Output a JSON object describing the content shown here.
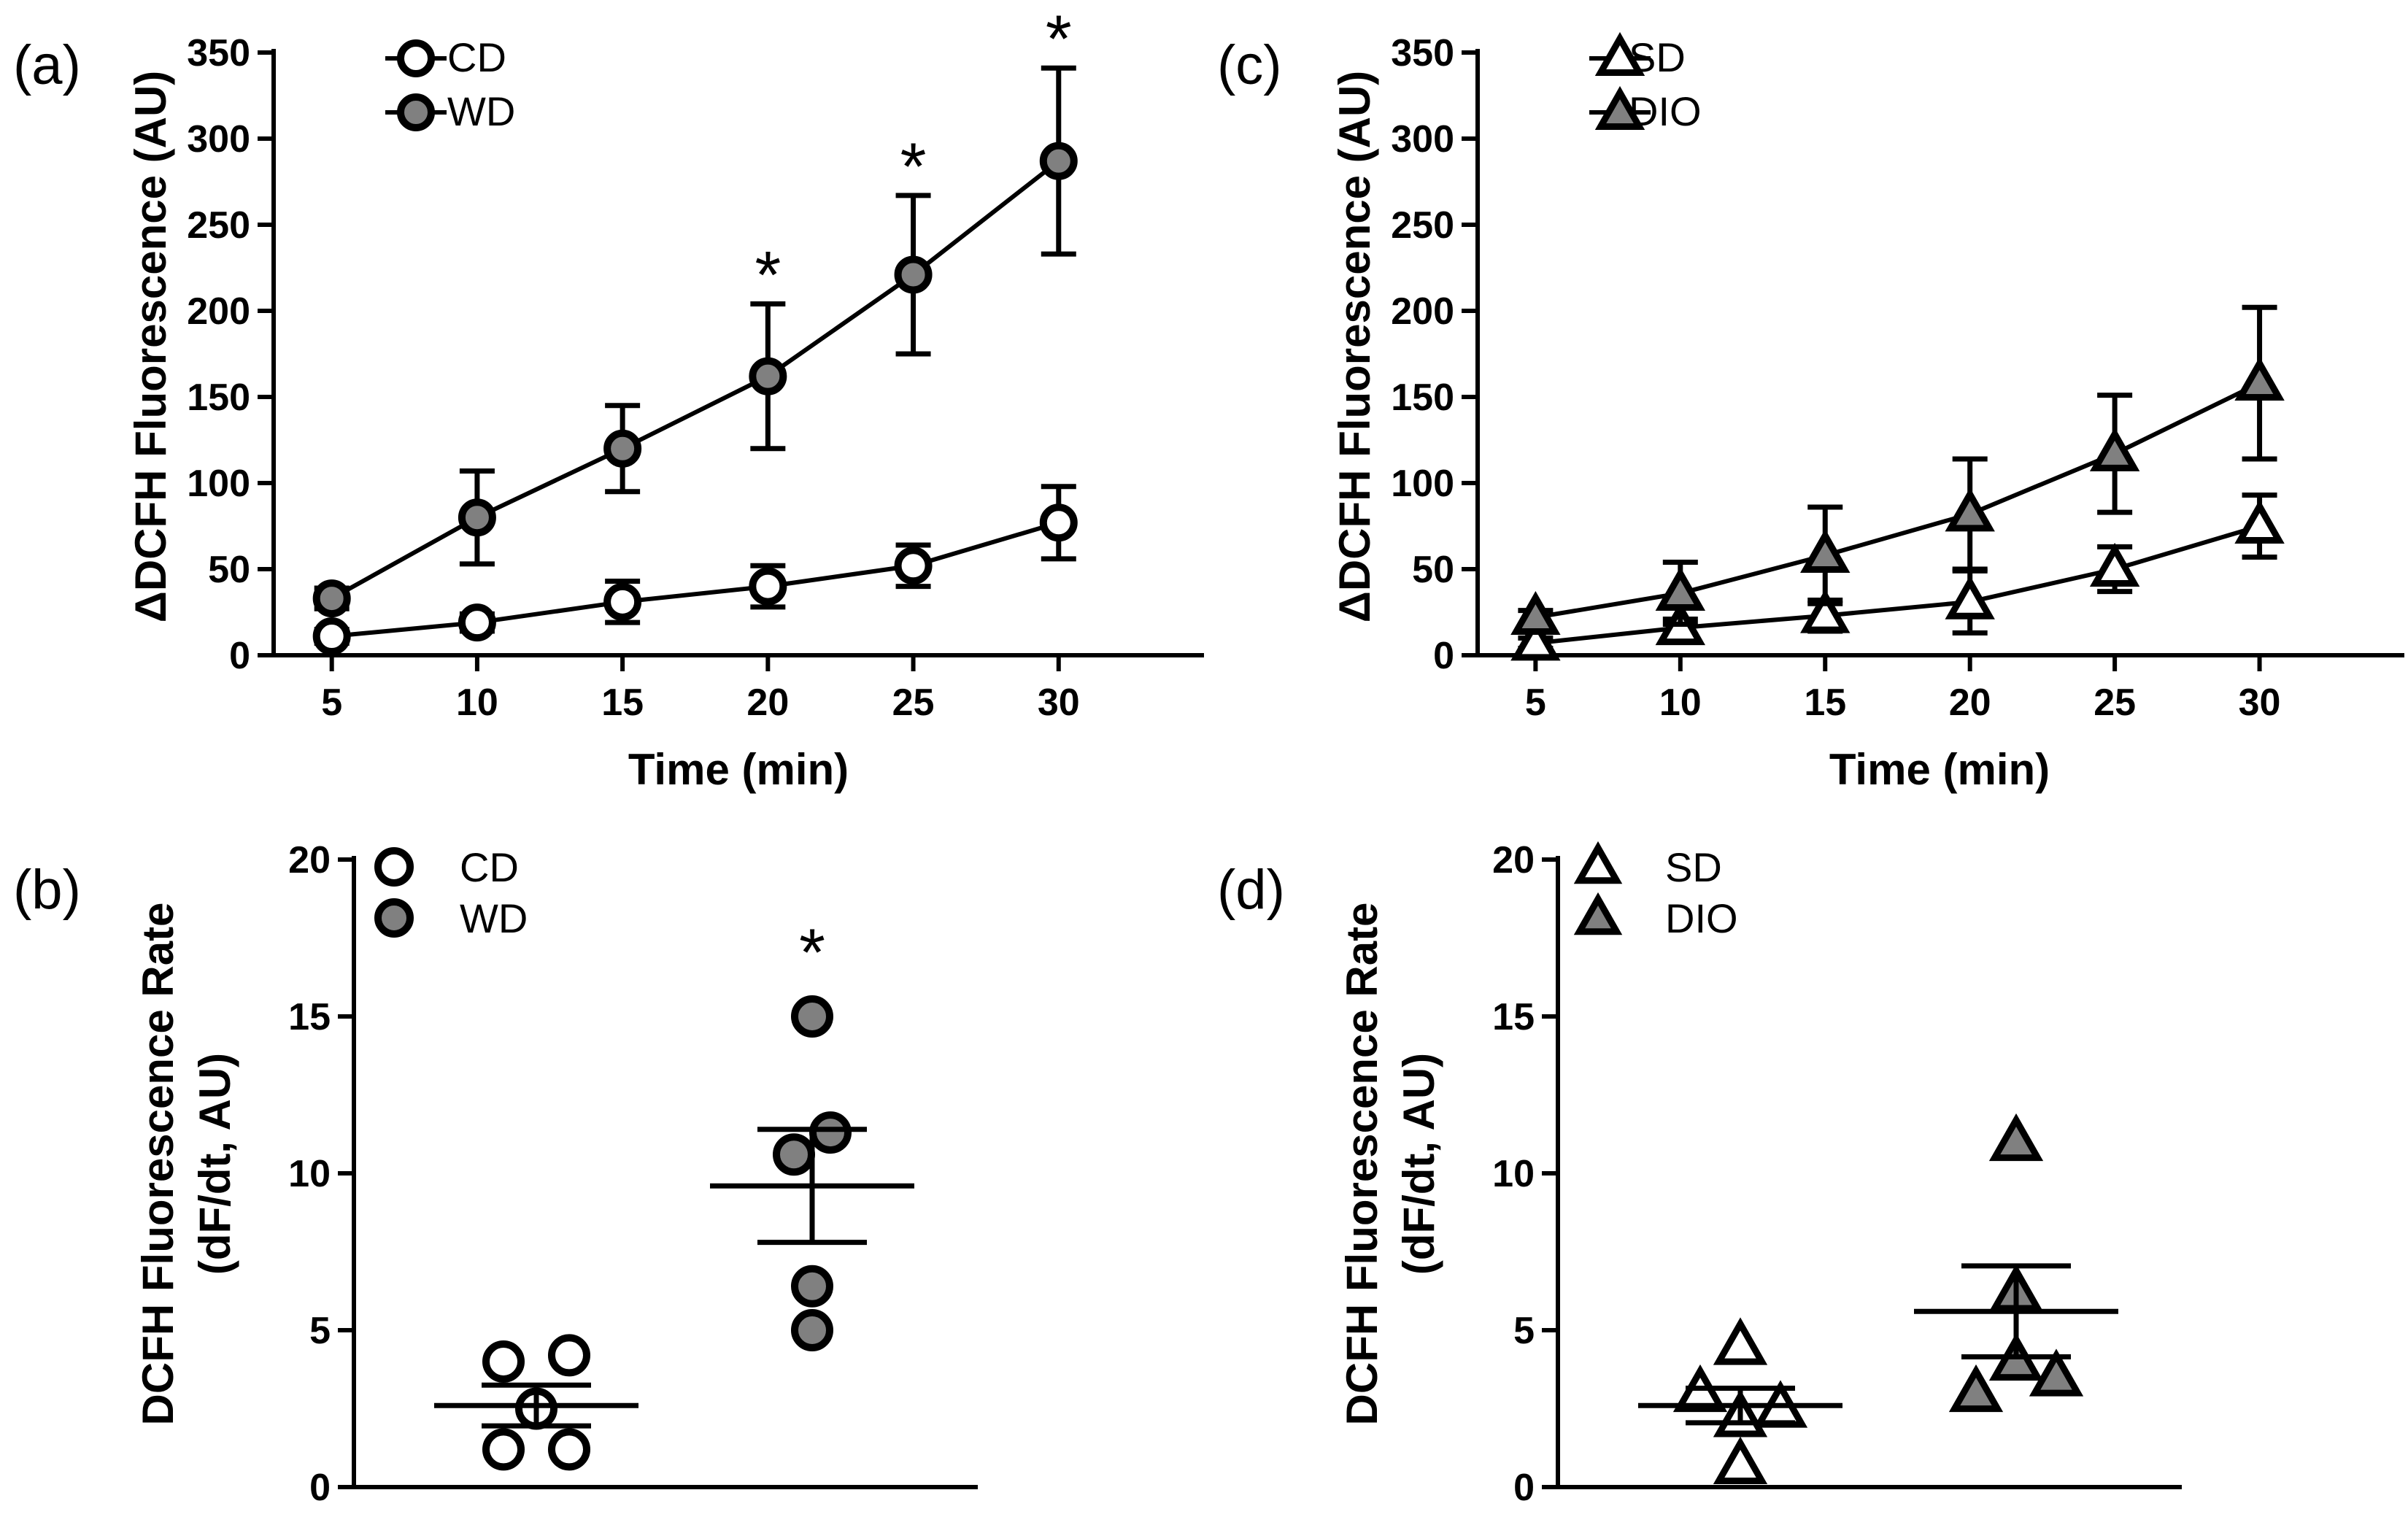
{
  "colors": {
    "open": "#ffffff",
    "filled": "#808080",
    "ink": "#000000"
  },
  "chart_data": [
    {
      "id": "a",
      "panel_label": "(a)",
      "type": "line",
      "xlabel": "Time (min)",
      "ylabel": "ΔDCFH Fluorescence (AU)",
      "x": [
        5,
        10,
        15,
        20,
        25,
        30
      ],
      "x_ticks": [
        "5",
        "10",
        "15",
        "20",
        "25",
        "30"
      ],
      "xlim": [
        3,
        35
      ],
      "ylim": [
        0,
        350
      ],
      "y_ticks": [
        "0",
        "50",
        "100",
        "150",
        "200",
        "250",
        "300",
        "350"
      ],
      "legend": [
        "CD",
        "WD"
      ],
      "series": [
        {
          "name": "CD",
          "marker": "circle",
          "fill": "open",
          "values": [
            11,
            19,
            31,
            40,
            52,
            77
          ],
          "err": [
            4,
            5,
            12,
            12,
            12,
            21
          ]
        },
        {
          "name": "WD",
          "marker": "circle",
          "fill": "filled",
          "values": [
            33,
            80,
            120,
            162,
            221,
            287
          ],
          "err": [
            6,
            27,
            25,
            42,
            46,
            54
          ]
        }
      ],
      "significance": [
        {
          "x": 20,
          "y": 204,
          "label": "*"
        },
        {
          "x": 25,
          "y": 267,
          "label": "*"
        },
        {
          "x": 30,
          "y": 341,
          "label": "*"
        }
      ]
    },
    {
      "id": "b",
      "panel_label": "(b)",
      "type": "scatter",
      "ylabel_lines": [
        "DCFH Fluorescence  Rate",
        "(dF/dt, AU)"
      ],
      "ylim": [
        0,
        20
      ],
      "y_ticks": [
        "0",
        "5",
        "10",
        "15",
        "20"
      ],
      "legend": [
        "CD",
        "WD"
      ],
      "groups": [
        {
          "name": "CD",
          "marker": "circle",
          "fill": "open",
          "points": [
            [
              -0.45,
              4.0
            ],
            [
              0.45,
              4.2
            ],
            [
              0,
              2.5
            ],
            [
              -0.45,
              1.2
            ],
            [
              0.45,
              1.2
            ]
          ],
          "mean": 2.6,
          "sem": 0.65
        },
        {
          "name": "WD",
          "marker": "circle",
          "fill": "filled",
          "points": [
            [
              0,
              15.0
            ],
            [
              -0.25,
              10.6
            ],
            [
              0.25,
              11.3
            ],
            [
              0,
              6.4
            ],
            [
              0,
              5.0
            ]
          ],
          "mean": 9.6,
          "sem": 1.8
        }
      ],
      "significance": [
        {
          "group": 1,
          "y": 17.0,
          "label": "*"
        }
      ]
    },
    {
      "id": "c",
      "panel_label": "(c)",
      "type": "line",
      "xlabel": "Time (min)",
      "ylabel": "ΔDCFH Fluorescence (AU)",
      "x": [
        5,
        10,
        15,
        20,
        25,
        30
      ],
      "x_ticks": [
        "5",
        "10",
        "15",
        "20",
        "25",
        "30"
      ],
      "xlim": [
        3,
        35
      ],
      "ylim": [
        0,
        350
      ],
      "y_ticks": [
        "0",
        "50",
        "100",
        "150",
        "200",
        "250",
        "300",
        "350"
      ],
      "legend": [
        "SD",
        "DIO"
      ],
      "series": [
        {
          "name": "SD",
          "marker": "triangle",
          "fill": "open",
          "values": [
            7,
            16,
            23,
            31,
            50,
            75
          ],
          "err": [
            3,
            5,
            9,
            18,
            13,
            18
          ]
        },
        {
          "name": "DIO",
          "marker": "triangle",
          "fill": "filled",
          "values": [
            22,
            36,
            58,
            82,
            117,
            158
          ],
          "err": [
            4,
            18,
            28,
            32,
            34,
            44
          ]
        }
      ],
      "significance": []
    },
    {
      "id": "d",
      "panel_label": "(d)",
      "type": "scatter",
      "ylabel_lines": [
        "DCFH Fluorescence  Rate",
        "(dF/dt, AU)"
      ],
      "ylim": [
        0,
        20
      ],
      "y_ticks": [
        "0",
        "5",
        "10",
        "15",
        "20"
      ],
      "legend": [
        "SD",
        "DIO"
      ],
      "groups": [
        {
          "name": "SD",
          "marker": "triangle",
          "fill": "open",
          "points": [
            [
              -0.55,
              3.0
            ],
            [
              0,
              4.5
            ],
            [
              0.55,
              2.5
            ],
            [
              0,
              2.2
            ],
            [
              0,
              0.7
            ]
          ],
          "mean": 2.6,
          "sem": 0.55
        },
        {
          "name": "DIO",
          "marker": "triangle",
          "fill": "filled",
          "points": [
            [
              0,
              11.0
            ],
            [
              -0.55,
              3.0
            ],
            [
              0.55,
              3.5
            ],
            [
              0,
              6.2
            ],
            [
              0,
              4.0
            ]
          ],
          "mean": 5.6,
          "sem": 1.45
        }
      ],
      "significance": []
    }
  ]
}
